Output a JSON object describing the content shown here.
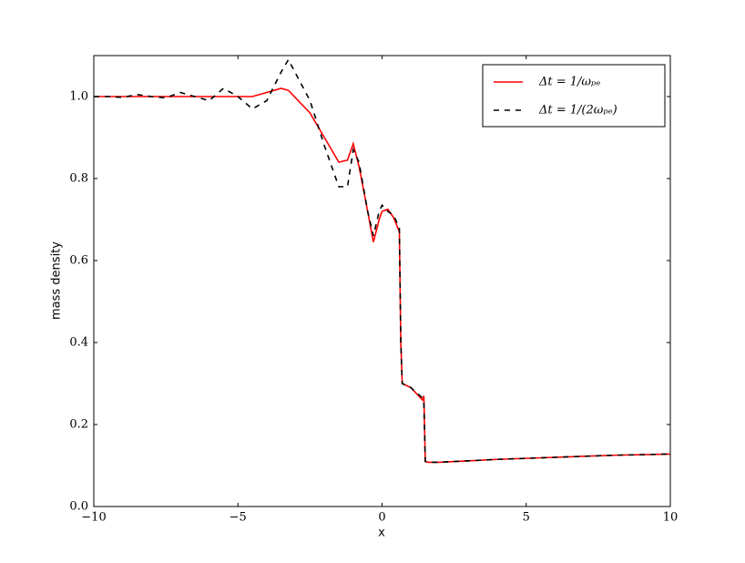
{
  "chart_data": {
    "type": "line",
    "xlabel": "x",
    "ylabel": "mass density",
    "x": [
      -10,
      -9.5,
      -9,
      -8.5,
      -8,
      -7.5,
      -7,
      -6.5,
      -6,
      -5.5,
      -5,
      -4.5,
      -4,
      -3.5,
      -3.25,
      -2.5,
      -2,
      -1.5,
      -1.2,
      -1,
      -0.8,
      -0.5,
      -0.3,
      -0.1,
      0,
      0.2,
      0.4,
      0.6,
      0.65,
      0.7,
      1.0,
      1.4,
      1.45,
      1.5,
      1.6,
      2,
      4,
      6,
      8,
      10
    ],
    "series": [
      {
        "name": "Δt = 1/ωₚₑ",
        "color": "#ff0000",
        "dash": false,
        "values": [
          1.0,
          1.0,
          1.0,
          1.0,
          1.0,
          1.0,
          1.0,
          1.0,
          1.0,
          1.0,
          1.0,
          1.0,
          1.01,
          1.02,
          1.015,
          0.96,
          0.9,
          0.84,
          0.845,
          0.885,
          0.83,
          0.72,
          0.645,
          0.7,
          0.72,
          0.725,
          0.705,
          0.67,
          0.4,
          0.3,
          0.29,
          0.26,
          0.27,
          0.11,
          0.108,
          0.108,
          0.115,
          0.12,
          0.125,
          0.128
        ]
      },
      {
        "name": "Δt = 1/(2ωₚₑ)",
        "color": "#000000",
        "dash": true,
        "values": [
          1.0,
          1.0,
          0.998,
          1.005,
          1.0,
          0.997,
          1.01,
          1.0,
          0.99,
          1.02,
          1.0,
          0.97,
          0.99,
          1.06,
          1.09,
          0.99,
          0.88,
          0.78,
          0.78,
          0.87,
          0.84,
          0.72,
          0.66,
          0.72,
          0.735,
          0.72,
          0.71,
          0.68,
          0.4,
          0.3,
          0.29,
          0.265,
          0.255,
          0.11,
          0.108,
          0.108,
          0.115,
          0.12,
          0.125,
          0.128
        ]
      }
    ],
    "xlim": [
      -10,
      10
    ],
    "ylim": [
      0,
      1.1
    ],
    "xticks": [
      {
        "value": -10,
        "label": "−10"
      },
      {
        "value": -5,
        "label": "−5"
      },
      0,
      5,
      10
    ],
    "yticks": [
      {
        "value": 0,
        "label": "0.0"
      },
      {
        "value": 0.2,
        "label": "0.2"
      },
      {
        "value": 0.4,
        "label": "0.4"
      },
      {
        "value": 0.6,
        "label": "0.6"
      },
      {
        "value": 0.8,
        "label": "0.8"
      },
      {
        "value": 1.0,
        "label": "1.0"
      }
    ],
    "legend": "upper right"
  }
}
